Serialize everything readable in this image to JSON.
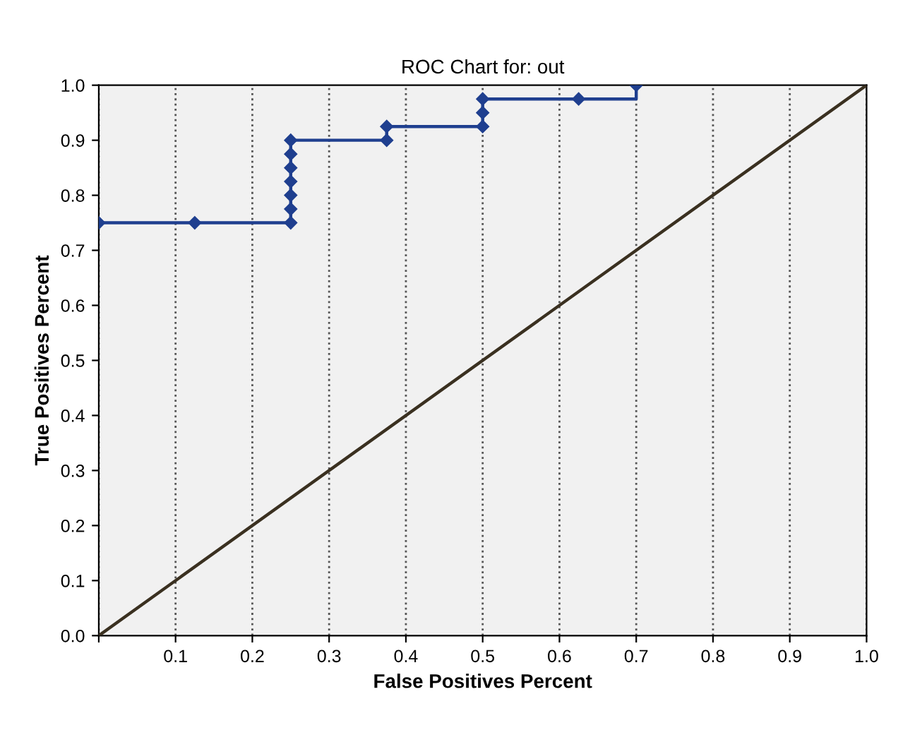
{
  "chart_data": {
    "type": "line",
    "title": "ROC Chart for: out",
    "xlabel": "False Positives Percent",
    "ylabel": "True Positives Percent",
    "series": [
      {
        "type": "step",
        "marker": "diamond",
        "color": "#1f3f8f",
        "x": [
          0,
          0.125,
          0.25,
          0.25,
          0.25,
          0.25,
          0.25,
          0.25,
          0.25,
          0.375,
          0.375,
          0.5,
          0.5,
          0.5,
          0.625,
          0.7
        ],
        "values": [
          0.75,
          0.75,
          0.75,
          0.775,
          0.8,
          0.825,
          0.85,
          0.875,
          0.9,
          0.9,
          0.925,
          0.925,
          0.95,
          0.975,
          0.975,
          1.0
        ]
      },
      {
        "marker": "none",
        "color": "#3a3020",
        "x": [
          0,
          1
        ],
        "values": [
          0,
          1
        ]
      }
    ],
    "xlim": [
      0,
      1
    ],
    "ylim": [
      0,
      1
    ],
    "xticks": [
      {
        "value": 0,
        "label": null
      },
      0.1,
      0.2,
      0.3,
      0.4,
      0.5,
      0.6,
      0.7,
      0.8,
      0.9,
      {
        "value": 1,
        "label": "1.0"
      }
    ],
    "yticks": [
      {
        "value": 0,
        "label": "0.0"
      },
      0.1,
      0.2,
      0.3,
      0.4,
      0.5,
      0.6,
      0.7,
      0.8,
      0.9,
      {
        "value": 1,
        "label": "1.0"
      }
    ],
    "grid": "x",
    "line_style": "solid"
  }
}
